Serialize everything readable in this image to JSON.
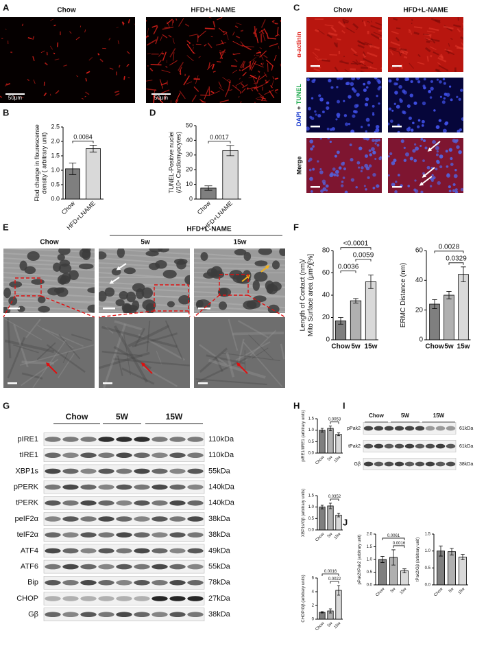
{
  "panel_labels": [
    "A",
    "B",
    "C",
    "D",
    "E",
    "F",
    "G",
    "H",
    "I",
    "J"
  ],
  "panel_a": {
    "groups": [
      "Chow",
      "HFD+L-NAME"
    ],
    "scale_bars": [
      "50μm",
      "50μm"
    ]
  },
  "panel_c": {
    "groups": [
      "Chow",
      "HFD+L-NAME"
    ],
    "stains": {
      "actinin": "α-actinin",
      "dapi": "DAPI",
      "plus": " + ",
      "tunel": "TUNEL",
      "merge": "Merge"
    }
  },
  "panel_e": {
    "treatment": "HFD+L-NAME",
    "groups": [
      "Chow",
      "5w",
      "15w"
    ]
  },
  "panel_g": {
    "groups": [
      "Chow",
      "5W",
      "15W"
    ],
    "rows": [
      {
        "protein": "pIRE1",
        "size": "110kDa"
      },
      {
        "protein": "tIRE1",
        "size": "110kDa"
      },
      {
        "protein": "XBP1s",
        "size": "55kDa"
      },
      {
        "protein": "pPERK",
        "size": "140kDa"
      },
      {
        "protein": "tPERK",
        "size": "140kDa"
      },
      {
        "protein": "peIF2α",
        "size": "38kDa"
      },
      {
        "protein": "teIF2α",
        "size": "38kDa"
      },
      {
        "protein": "ATF4",
        "size": "49kDa"
      },
      {
        "protein": "ATF6",
        "size": "55kDa"
      },
      {
        "protein": "Bip",
        "size": "78kDa"
      },
      {
        "protein": "CHOP",
        "size": "27kDa"
      },
      {
        "protein": "Gβ",
        "size": "38kDa"
      }
    ]
  },
  "panel_i": {
    "groups": [
      "Chow",
      "5W",
      "15W"
    ],
    "rows": [
      {
        "protein": "pPak2",
        "size": "61kDa"
      },
      {
        "protein": "tPak2",
        "size": "61kDa"
      },
      {
        "protein": "Gβ",
        "size": "38kDa"
      }
    ]
  },
  "chart_data": [
    {
      "type": "bar",
      "ylabel": [
        "Flod change in flourescense",
        "density ( arbitrary unit)"
      ],
      "categories": [
        "Chow",
        "HFD+LNAME"
      ],
      "values": [
        1.05,
        1.75
      ],
      "errors": [
        0.2,
        0.12
      ],
      "colors": [
        "#7f7f7f",
        "#d9d9d9"
      ],
      "ylim": [
        0,
        2.5
      ],
      "yticks": [
        {
          "value": 0,
          "label": "0.0"
        },
        0.5,
        {
          "value": 1,
          "label": "1.0"
        },
        1.5,
        {
          "value": 2,
          "label": "2.0"
        },
        2.5
      ],
      "annotations": [
        {
          "label": "0.0084",
          "from": 0,
          "to": 1
        }
      ]
    },
    {
      "type": "bar",
      "ylabel": [
        "TUNEL-Positive nuclei",
        "(/10⁴ Cardiomyocytes)"
      ],
      "categories": [
        "Chow",
        "HFD+LNAME"
      ],
      "values": [
        7.5,
        33
      ],
      "errors": [
        1.5,
        3.5
      ],
      "colors": [
        "#7f7f7f",
        "#d9d9d9"
      ],
      "ylim": [
        0,
        50
      ],
      "yticks": [
        0,
        10,
        20,
        30,
        40,
        50
      ],
      "annotations": [
        {
          "label": "0.0017",
          "from": 0,
          "to": 1
        }
      ]
    },
    {
      "type": "bar",
      "ylabel": [
        "Length of Contact (nm)/",
        "Mito Surface area (μm²)[%]"
      ],
      "categories": [
        "Chow",
        "5w",
        "15w"
      ],
      "values": [
        17,
        35,
        52
      ],
      "errors": [
        3,
        2,
        6
      ],
      "colors": [
        "#7f7f7f",
        "#b0b0b0",
        "#d9d9d9"
      ],
      "ylim": [
        0,
        80
      ],
      "yticks": [
        0,
        20,
        40,
        60,
        80
      ],
      "annotations": [
        {
          "label": "0.0036",
          "from": 0,
          "to": 1
        },
        {
          "label": "0.0059",
          "from": 1,
          "to": 2
        },
        {
          "label": "<0.0001",
          "from": 0,
          "to": 2
        }
      ]
    },
    {
      "type": "bar",
      "ylabel": [
        "ERMC Distance (nm)"
      ],
      "categories": [
        "Chow",
        "5w",
        "15w"
      ],
      "values": [
        24,
        30,
        44
      ],
      "errors": [
        3,
        2.5,
        5
      ],
      "colors": [
        "#7f7f7f",
        "#b0b0b0",
        "#d9d9d9"
      ],
      "ylim": [
        0,
        60
      ],
      "yticks": [
        0,
        20,
        40,
        60
      ],
      "annotations": [
        {
          "label": "0.0329",
          "from": 1,
          "to": 2
        },
        {
          "label": "0.0028",
          "from": 0,
          "to": 2
        }
      ]
    },
    {
      "type": "bar",
      "ylabel": [
        "pIRE1/tIRE1 (arbitrary units)"
      ],
      "categories": [
        "Chow",
        "5w",
        "15w"
      ],
      "values": [
        1.0,
        1.08,
        0.82
      ],
      "errors": [
        0.08,
        0.1,
        0.06
      ],
      "colors": [
        "#7f7f7f",
        "#b0b0b0",
        "#d9d9d9"
      ],
      "ylim": [
        0,
        1.5
      ],
      "yticks": [
        {
          "value": 0,
          "label": "0.0"
        },
        0.5,
        {
          "value": 1,
          "label": "1.0"
        },
        1.5
      ],
      "annotations": [
        {
          "label": "0.0053",
          "from": 1,
          "to": 2
        }
      ]
    },
    {
      "type": "bar",
      "ylabel": [
        "XBP1s/Gβ (arbitrary units)"
      ],
      "categories": [
        "Chow",
        "5w",
        "15w"
      ],
      "values": [
        1.0,
        1.05,
        0.65
      ],
      "errors": [
        0.08,
        0.12,
        0.08
      ],
      "colors": [
        "#7f7f7f",
        "#b0b0b0",
        "#d9d9d9"
      ],
      "ylim": [
        0,
        1.5
      ],
      "yticks": [
        {
          "value": 0,
          "label": "0.0"
        },
        0.5,
        {
          "value": 1,
          "label": "1.0"
        },
        1.5
      ],
      "annotations": [
        {
          "label": "0.0352",
          "from": 1,
          "to": 2
        }
      ]
    },
    {
      "type": "bar",
      "ylabel": [
        "CHOP/Gβ (arbitrary units)"
      ],
      "categories": [
        "Chow",
        "5w",
        "15w"
      ],
      "values": [
        1.0,
        1.2,
        4.2
      ],
      "errors": [
        0.1,
        0.3,
        0.7
      ],
      "colors": [
        "#7f7f7f",
        "#b0b0b0",
        "#d9d9d9"
      ],
      "ylim": [
        0,
        6
      ],
      "yticks": [
        0,
        2,
        4,
        6
      ],
      "annotations": [
        {
          "label": "0.0022",
          "from": 1,
          "to": 2
        },
        {
          "label": "0.0016",
          "from": 0,
          "to": 2
        }
      ]
    },
    {
      "type": "bar",
      "ylabel": [
        "pPak2/tPak2 (arbitrary unit)"
      ],
      "categories": [
        "Chow",
        "5w",
        "15w"
      ],
      "values": [
        1.0,
        1.08,
        0.55
      ],
      "errors": [
        0.12,
        0.3,
        0.08
      ],
      "colors": [
        "#7f7f7f",
        "#b0b0b0",
        "#d9d9d9"
      ],
      "ylim": [
        0,
        2
      ],
      "yticks": [
        {
          "value": 0,
          "label": "0.0"
        },
        0.5,
        {
          "value": 1,
          "label": "1.0"
        },
        1.5,
        {
          "value": 2,
          "label": "2.0"
        }
      ],
      "annotations": [
        {
          "label": "0.0016",
          "from": 1,
          "to": 2
        },
        {
          "label": "0.0061",
          "from": 0,
          "to": 2
        }
      ]
    },
    {
      "type": "bar",
      "ylabel": [
        "tPak2/Gβ (arbitrary unit)"
      ],
      "categories": [
        "Chow",
        "5w",
        "15w"
      ],
      "values": [
        1.0,
        0.98,
        0.82
      ],
      "errors": [
        0.15,
        0.1,
        0.08
      ],
      "colors": [
        "#7f7f7f",
        "#b0b0b0",
        "#d9d9d9"
      ],
      "ylim": [
        0,
        1.5
      ],
      "yticks": [
        {
          "value": 0,
          "label": "0.0"
        },
        0.5,
        {
          "value": 1,
          "label": "1.0"
        },
        1.5
      ],
      "annotations": []
    }
  ]
}
